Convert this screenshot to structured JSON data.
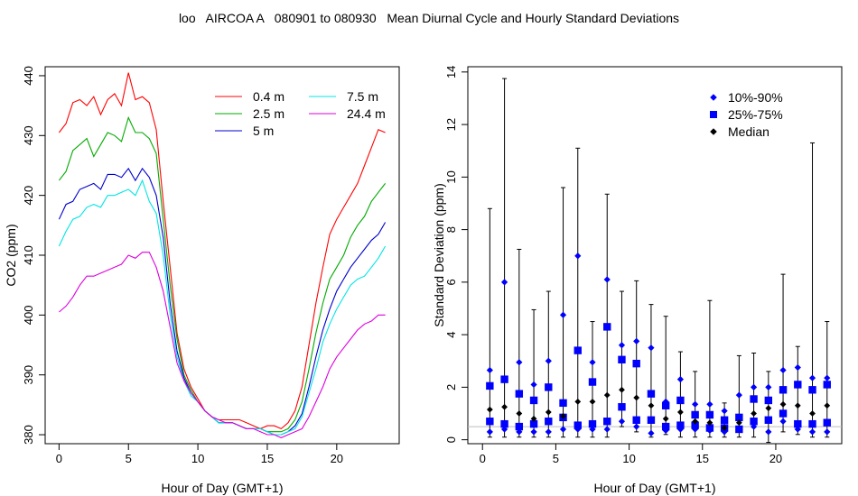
{
  "title": "loo   AIRCOA A   080901 to 080930   Mean Diurnal Cycle and Hourly Standard Deviations",
  "chart_data": [
    {
      "type": "line",
      "xlabel": "Hour of Day (GMT+1)",
      "ylabel": "CO2 (ppm)",
      "xlim": [
        -1,
        24.5
      ],
      "ylim": [
        378.5,
        441.5
      ],
      "xticks": [
        0,
        5,
        10,
        15,
        20
      ],
      "yticks": [
        380,
        390,
        400,
        410,
        420,
        430,
        440
      ],
      "legend_position": "top-right",
      "series": [
        {
          "name": "0.4 m",
          "color": "#ff0000",
          "x": [
            0,
            0.5,
            1,
            1.5,
            2,
            2.5,
            3,
            3.5,
            4,
            4.5,
            5,
            5.5,
            6,
            6.5,
            7,
            7.5,
            8,
            8.5,
            9,
            9.5,
            10,
            10.5,
            11,
            11.5,
            12,
            12.5,
            13,
            13.5,
            14,
            14.5,
            15,
            15.5,
            16,
            16.5,
            17,
            17.5,
            18,
            18.5,
            19,
            19.5,
            20,
            20.5,
            21,
            21.5,
            22,
            22.5,
            23,
            23.5
          ],
          "y": [
            430.5,
            432,
            435.5,
            436,
            435,
            436.5,
            433.5,
            436,
            437,
            435,
            440.5,
            436,
            436.5,
            435.5,
            431,
            419,
            408,
            397,
            391,
            388,
            386,
            384,
            383,
            382.5,
            382.5,
            382.5,
            382.5,
            382,
            381.5,
            381,
            381.5,
            381.5,
            381,
            382,
            384,
            388,
            395,
            402,
            408,
            413.5,
            416,
            418,
            420,
            422,
            425,
            428,
            431,
            430.5
          ]
        },
        {
          "name": "2.5 m",
          "color": "#00aa00",
          "x": [
            0,
            0.5,
            1,
            1.5,
            2,
            2.5,
            3,
            3.5,
            4,
            4.5,
            5,
            5.5,
            6,
            6.5,
            7,
            7.5,
            8,
            8.5,
            9,
            9.5,
            10,
            10.5,
            11,
            11.5,
            12,
            12.5,
            13,
            13.5,
            14,
            14.5,
            15,
            15.5,
            16,
            16.5,
            17,
            17.5,
            18,
            18.5,
            19,
            19.5,
            20,
            20.5,
            21,
            21.5,
            22,
            22.5,
            23,
            23.5
          ],
          "y": [
            422.5,
            424,
            427.5,
            428.5,
            429.5,
            426.5,
            428.5,
            430.5,
            430,
            429,
            433,
            430.5,
            430.5,
            429.5,
            427,
            416,
            405,
            396,
            390,
            387.5,
            385.5,
            384,
            383,
            382,
            382,
            382,
            381.5,
            381,
            381,
            381,
            380.5,
            380.5,
            380.5,
            381,
            382.5,
            385.5,
            391,
            397,
            402,
            406,
            408,
            410,
            413,
            415,
            416.5,
            419,
            420.5,
            422
          ]
        },
        {
          "name": "5 m",
          "color": "#0000cc",
          "x": [
            0,
            0.5,
            1,
            1.5,
            2,
            2.5,
            3,
            3.5,
            4,
            4.5,
            5,
            5.5,
            6,
            6.5,
            7,
            7.5,
            8,
            8.5,
            9,
            9.5,
            10,
            10.5,
            11,
            11.5,
            12,
            12.5,
            13,
            13.5,
            14,
            14.5,
            15,
            15.5,
            16,
            16.5,
            17,
            17.5,
            18,
            18.5,
            19,
            19.5,
            20,
            20.5,
            21,
            21.5,
            22,
            22.5,
            23,
            23.5
          ],
          "y": [
            416,
            418.5,
            419,
            421,
            421.5,
            422,
            421,
            423.5,
            423.5,
            423,
            424.5,
            422.5,
            424.5,
            423,
            420,
            413,
            402,
            394,
            389.5,
            387,
            385.5,
            384,
            383,
            382,
            382,
            382,
            381.5,
            381,
            381,
            381,
            380.5,
            380,
            380,
            380.5,
            381.5,
            383.5,
            388,
            393,
            397.5,
            401,
            404,
            406,
            408,
            409.5,
            411,
            412.5,
            413.5,
            415.5
          ]
        },
        {
          "name": "7.5 m",
          "color": "#00e5e5",
          "x": [
            0,
            0.5,
            1,
            1.5,
            2,
            2.5,
            3,
            3.5,
            4,
            4.5,
            5,
            5.5,
            6,
            6.5,
            7,
            7.5,
            8,
            8.5,
            9,
            9.5,
            10,
            10.5,
            11,
            11.5,
            12,
            12.5,
            13,
            13.5,
            14,
            14.5,
            15,
            15.5,
            16,
            16.5,
            17,
            17.5,
            18,
            18.5,
            19,
            19.5,
            20,
            20.5,
            21,
            21.5,
            22,
            22.5,
            23,
            23.5
          ],
          "y": [
            411.5,
            414,
            416,
            416.5,
            418,
            418.5,
            418,
            420,
            420,
            420.5,
            421,
            420,
            422.5,
            419,
            417,
            410,
            400,
            393,
            389,
            386.5,
            385.5,
            384,
            383,
            382,
            382,
            382,
            381.5,
            381,
            381,
            381,
            380.5,
            380,
            380,
            380.5,
            381,
            383,
            387,
            391,
            395.5,
            398.5,
            401,
            403,
            405,
            406,
            406.5,
            408,
            409.5,
            411.5
          ]
        },
        {
          "name": "24.4 m",
          "color": "#dd00dd",
          "x": [
            0,
            0.5,
            1,
            1.5,
            2,
            2.5,
            3,
            3.5,
            4,
            4.5,
            5,
            5.5,
            6,
            6.5,
            7,
            7.5,
            8,
            8.5,
            9,
            9.5,
            10,
            10.5,
            11,
            11.5,
            12,
            12.5,
            13,
            13.5,
            14,
            14.5,
            15,
            15.5,
            16,
            16.5,
            17,
            17.5,
            18,
            18.5,
            19,
            19.5,
            20,
            20.5,
            21,
            21.5,
            22,
            22.5,
            23,
            23.5
          ],
          "y": [
            400.5,
            401.5,
            403,
            405,
            406.5,
            406.5,
            407,
            407.5,
            408,
            408.5,
            410,
            409.5,
            410.5,
            410.5,
            408,
            404,
            398,
            392,
            389,
            387,
            385.5,
            384,
            383,
            382.5,
            382,
            382,
            381.5,
            381,
            381,
            380.5,
            380,
            380,
            379.5,
            380,
            380.5,
            381,
            383,
            385.5,
            388,
            391,
            393,
            394.5,
            396,
            397.5,
            398.5,
            399,
            400,
            400
          ]
        }
      ]
    },
    {
      "type": "scatter",
      "xlabel": "Hour of Day (GMT+1)",
      "ylabel": "Standard Deviation (ppm)",
      "xlim": [
        -1,
        24.5
      ],
      "ylim": [
        -0.15,
        14.2
      ],
      "xticks": [
        0,
        5,
        10,
        15,
        20
      ],
      "yticks": [
        0,
        2,
        4,
        6,
        8,
        10,
        12,
        14
      ],
      "reference_line": 0.5,
      "legend_position": "top-right",
      "legend": [
        {
          "label": "10%-90%",
          "marker": "diamond",
          "color": "#0000ff"
        },
        {
          "label": "25%-75%",
          "marker": "square",
          "color": "#0000ff"
        },
        {
          "label": "Median",
          "marker": "diamond",
          "color": "#000000"
        }
      ],
      "hours": [
        0.5,
        1.5,
        2.5,
        3.5,
        4.5,
        5.5,
        6.5,
        7.5,
        8.5,
        9.5,
        10.5,
        11.5,
        12.5,
        13.5,
        14.5,
        15.5,
        16.5,
        17.5,
        18.5,
        19.5,
        20.5,
        21.5,
        22.5,
        23.5
      ],
      "p10": [
        0.3,
        0.4,
        0.3,
        0.3,
        0.3,
        0.4,
        0.4,
        0.4,
        0.4,
        0.7,
        0.5,
        0.25,
        0.35,
        0.4,
        0.4,
        0.35,
        0.3,
        0.4,
        0.5,
        0.3,
        0.7,
        0.4,
        0.3,
        0.3
      ],
      "p25": [
        0.7,
        0.6,
        0.5,
        0.6,
        0.7,
        0.85,
        0.55,
        0.6,
        0.7,
        1.25,
        0.75,
        0.75,
        0.5,
        0.55,
        0.55,
        0.45,
        0.45,
        0.4,
        0.7,
        0.75,
        1.0,
        0.6,
        0.6,
        0.65
      ],
      "median": [
        1.15,
        1.25,
        1.0,
        0.8,
        1.05,
        0.9,
        1.45,
        1.45,
        1.7,
        1.9,
        1.6,
        1.3,
        0.8,
        1.05,
        0.7,
        0.65,
        0.45,
        0.65,
        1.0,
        1.2,
        1.35,
        1.3,
        1.0,
        1.3
      ],
      "p75": [
        2.05,
        2.3,
        1.75,
        1.5,
        2.0,
        1.4,
        3.4,
        2.2,
        4.3,
        3.05,
        2.9,
        1.75,
        1.3,
        1.5,
        0.95,
        0.95,
        0.75,
        0.85,
        1.55,
        1.5,
        1.9,
        2.1,
        1.9,
        2.1
      ],
      "p90": [
        2.65,
        6.0,
        2.95,
        2.1,
        3.0,
        4.75,
        7.0,
        2.95,
        6.1,
        3.6,
        3.75,
        3.5,
        1.45,
        2.3,
        1.35,
        1.35,
        1.1,
        1.7,
        2.0,
        2.0,
        2.65,
        2.75,
        2.35,
        2.35
      ],
      "max": [
        8.8,
        13.75,
        7.25,
        4.95,
        5.65,
        9.6,
        11.1,
        4.5,
        9.35,
        5.65,
        6.05,
        5.15,
        4.7,
        3.35,
        2.6,
        5.3,
        1.4,
        3.2,
        3.3,
        2.6,
        6.3,
        3.55,
        11.3,
        4.5
      ],
      "min": [
        0.1,
        0.1,
        0.1,
        0.1,
        0.1,
        0.1,
        0.1,
        0.1,
        0.1,
        0.5,
        0.3,
        0.1,
        0.2,
        0.1,
        0.1,
        0.1,
        0.1,
        0.1,
        0.1,
        -0.1,
        0.3,
        0.2,
        0.1,
        0.1
      ]
    }
  ]
}
